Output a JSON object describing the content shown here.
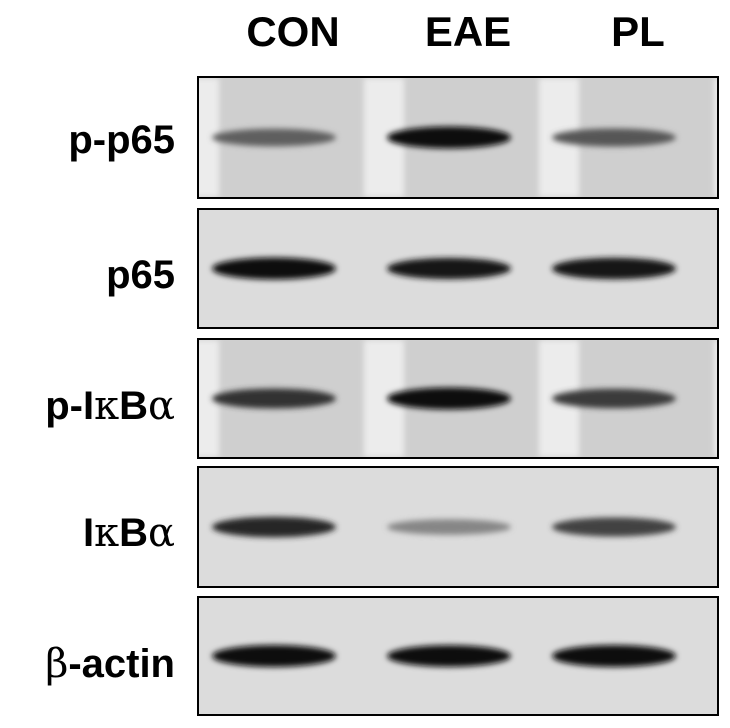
{
  "lanes": [
    "CON",
    "EAE",
    "PL"
  ],
  "rows": [
    {
      "label": "p-p65",
      "intensities": [
        0.55,
        1.0,
        0.6
      ]
    },
    {
      "label": "p65",
      "intensities": [
        1.0,
        0.92,
        0.95
      ]
    },
    {
      "label_parts": [
        "p-I",
        "κ",
        "B",
        "α"
      ],
      "intensities": [
        0.8,
        1.0,
        0.75
      ]
    },
    {
      "label_parts": [
        "I",
        "κ",
        "B",
        "α"
      ],
      "intensities": [
        0.85,
        0.35,
        0.7
      ]
    },
    {
      "label_parts": [
        "β",
        "-actin"
      ],
      "intensities": [
        1.0,
        0.97,
        1.0
      ]
    }
  ]
}
